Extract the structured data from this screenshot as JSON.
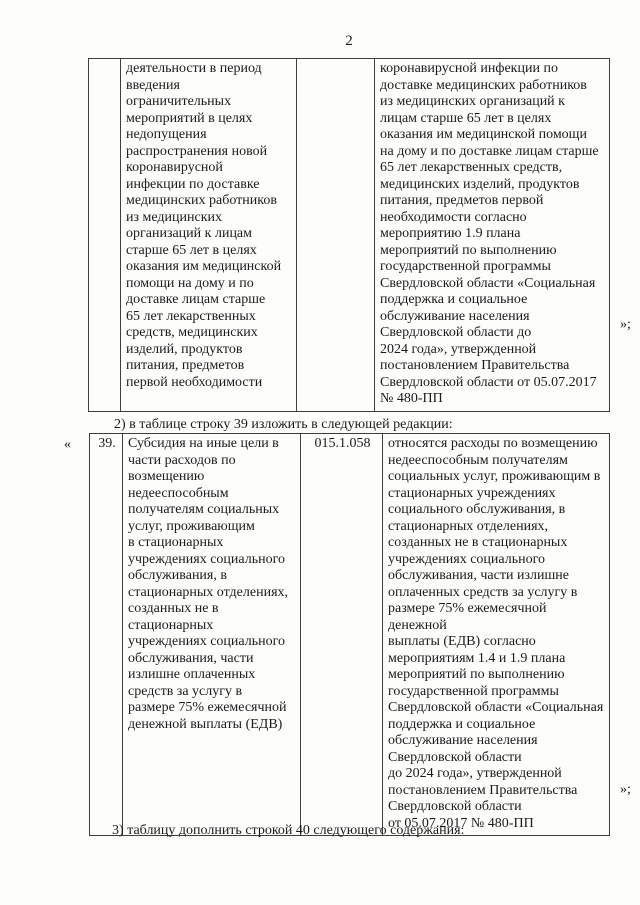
{
  "page": {
    "number": "2"
  },
  "marks": {
    "open_quote": "«",
    "close_quote_1": "»;",
    "close_quote_2": "»;"
  },
  "paragraphs": {
    "amendment_2": "2) в таблице строку 39 изложить в следующей редакции:",
    "amendment_3": "3) таблицу дополнить строкой 40 следующего содержания:"
  },
  "table1": {
    "row": {
      "num": "",
      "name": "деятельности в период\nвведения\nограничительных\nмероприятий в целях\nнедопущения\nраспространения новой\nкоронавирусной\nинфекции по доставке\nмедицинских работников\nиз медицинских\nорганизаций к лицам\nстарше 65 лет в целях\nоказания им медицинской\nпомощи на дому и по\nдоставке лицам старше\n65 лет лекарственных\nсредств, медицинских\nизделий, продуктов\nпитания, предметов\nпервой необходимости",
      "code": "",
      "description": "коронавирусной инфекции по\nдоставке медицинских работников\nиз медицинских организаций к\nлицам старше 65 лет в целях\nоказания им медицинской помощи\nна дому и по доставке лицам старше\n65 лет лекарственных средств,\nмедицинских изделий, продуктов\nпитания, предметов первой\nнеобходимости согласно\nмероприятию 1.9 плана\nмероприятий по выполнению\nгосударственной программы\nСвердловской области «Социальная\nподдержка и социальное\nобслуживание населения\nСвердловской области до\n2024 года», утвержденной\nпостановлением Правительства\nСвердловской области от 05.07.2017\n№ 480-ПП"
    }
  },
  "table2": {
    "row": {
      "num": "39.",
      "name": "Субсидия на иные цели в\nчасти расходов по\nвозмещению\nнедееспособным\nполучателям социальных\nуслуг, проживающим\nв стационарных\nучреждениях социального\nобслуживания, в\nстационарных отделениях,\nсозданных не в\nстационарных\nучреждениях социального\nобслуживания, части\nизлишне оплаченных\nсредств за услугу в\nразмере 75% ежемесячной\nденежной выплаты (ЕДВ)",
      "code": "015.1.058",
      "description": "относятся расходы по возмещению\nнедееспособным получателям\nсоциальных услуг, проживающим в\nстационарных учреждениях\nсоциального обслуживания, в\nстационарных отделениях,\nсозданных не в стационарных\nучреждениях социального\nобслуживания, части излишне\nоплаченных средств за услугу в\nразмере 75% ежемесячной денежной\nвыплаты (ЕДВ) согласно\nмероприятиям 1.4 и 1.9 плана\nмероприятий по выполнению\nгосударственной программы\nСвердловской области «Социальная\nподдержка и социальное\nобслуживание населения\nСвердловской области\nдо 2024 года», утвержденной\nпостановлением Правительства\nСвердловской области\nот 05.07.2017 № 480-ПП"
    }
  }
}
